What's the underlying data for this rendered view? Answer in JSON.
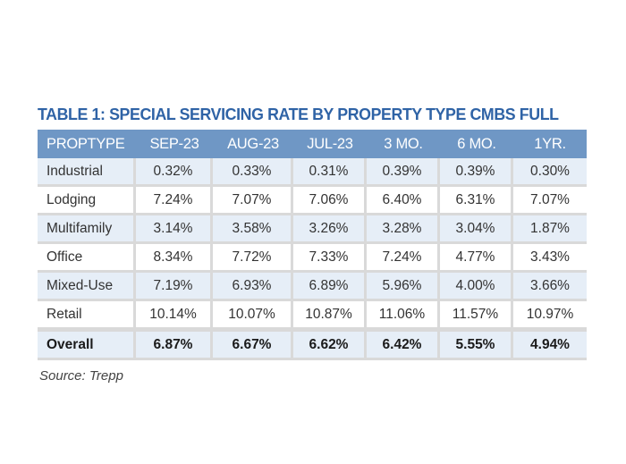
{
  "title": "TABLE 1: SPECIAL SERVICING RATE BY PROPERTY TYPE CMBS FULL",
  "table": {
    "headers": [
      "PROPTYPE",
      "SEP-23",
      "AUG-23",
      "JUL-23",
      "3 MO.",
      "6 MO.",
      "1YR."
    ],
    "rows": [
      [
        "Industrial",
        "0.32%",
        "0.33%",
        "0.31%",
        "0.39%",
        "0.39%",
        "0.30%"
      ],
      [
        "Lodging",
        "7.24%",
        "7.07%",
        "7.06%",
        "6.40%",
        "6.31%",
        "7.07%"
      ],
      [
        "Multifamily",
        "3.14%",
        "3.58%",
        "3.26%",
        "3.28%",
        "3.04%",
        "1.87%"
      ],
      [
        "Office",
        "8.34%",
        "7.72%",
        "7.33%",
        "7.24%",
        "4.77%",
        "3.43%"
      ],
      [
        "Mixed-Use",
        "7.19%",
        "6.93%",
        "6.89%",
        "5.96%",
        "4.00%",
        "3.66%"
      ],
      [
        "Retail",
        "10.14%",
        "10.07%",
        "10.87%",
        "11.06%",
        "11.57%",
        "10.97%"
      ]
    ],
    "overall": [
      "Overall",
      "6.87%",
      "6.67%",
      "6.62%",
      "6.42%",
      "5.55%",
      "4.94%"
    ]
  },
  "source": "Source: Trepp",
  "colors": {
    "title": "#2f63a6",
    "header_bg": "#6f97c5",
    "alt_row_bg": "#e6eef7",
    "grid": "#d9d9d9"
  }
}
